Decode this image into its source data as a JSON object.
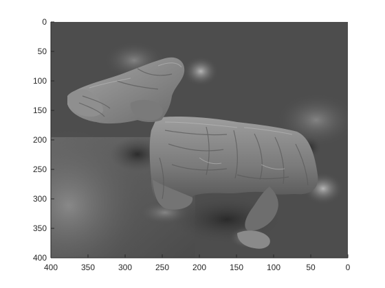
{
  "chart_data": {
    "type": "heatmap",
    "title": "",
    "xlabel": "",
    "ylabel": "",
    "xlim": [
      400,
      0
    ],
    "ylim": [
      400,
      0
    ],
    "x_direction": "reversed",
    "y_direction": "top-down",
    "x_ticks": [
      400,
      350,
      300,
      250,
      200,
      150,
      100,
      50,
      0
    ],
    "y_ticks": [
      0,
      50,
      100,
      150,
      200,
      250,
      300,
      350,
      400
    ],
    "grid": false,
    "colormap": "gray",
    "image_description": "shaded grayscale depth surface of a plush toy dog",
    "colors": {
      "background": "#4a4a4a",
      "surface": "#8c8c8c",
      "highlight": "#d9d9d9"
    }
  }
}
